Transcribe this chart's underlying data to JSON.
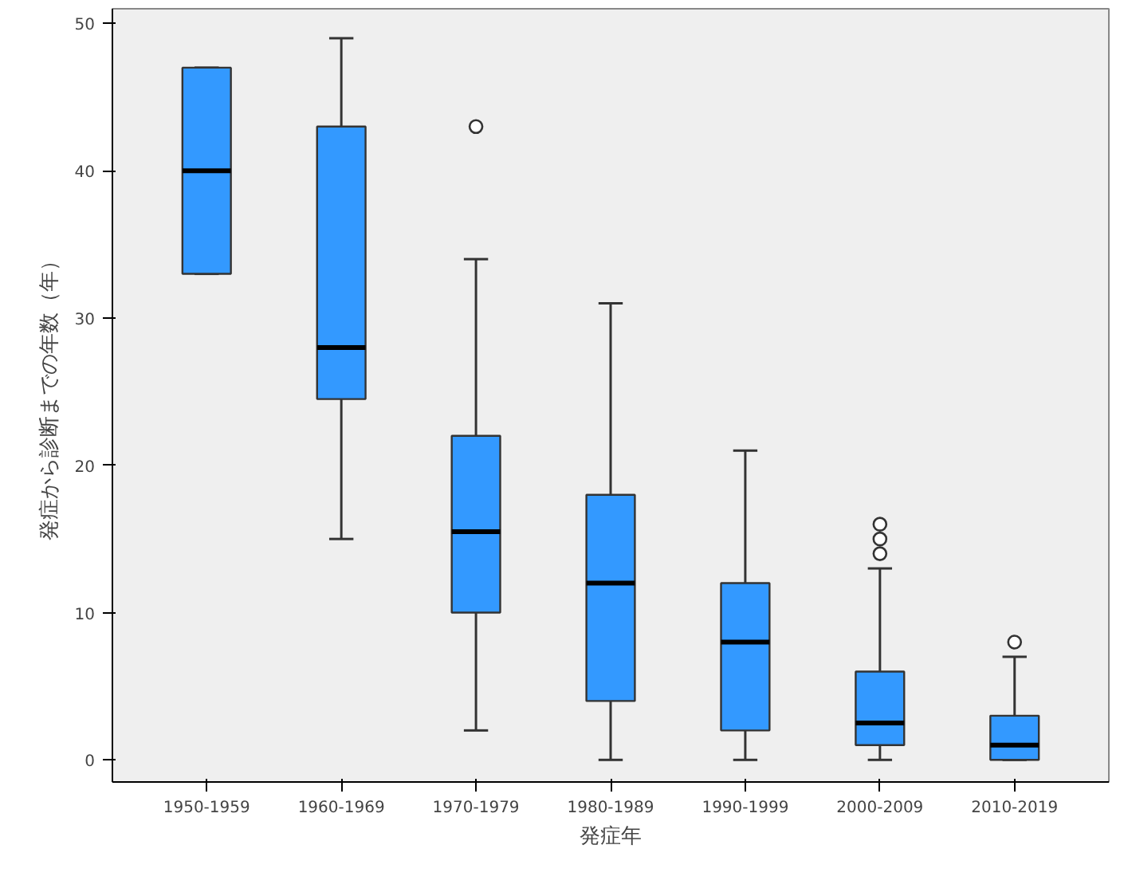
{
  "chart_data": {
    "type": "box",
    "xlabel": "発症年",
    "ylabel": "発症から診断までの年数（年）",
    "categories": [
      "1950-1959",
      "1960-1969",
      "1970-1979",
      "1980-1989",
      "1990-1999",
      "2000-2009",
      "2010-2019"
    ],
    "color": "#3399ff",
    "ylim": [
      -1.5,
      51
    ],
    "yticks": [
      0,
      10,
      20,
      30,
      40,
      50
    ],
    "grid": false,
    "boxes": [
      {
        "low": 33,
        "q1": 33,
        "median": 40,
        "q3": 47,
        "high": 47
      },
      {
        "low": 15,
        "q1": 24.5,
        "median": 28,
        "q3": 43,
        "high": 49
      },
      {
        "low": 2,
        "q1": 10,
        "median": 15.5,
        "q3": 22,
        "high": 34,
        "outliers": [
          43
        ]
      },
      {
        "low": 0,
        "q1": 4,
        "median": 12,
        "q3": 18,
        "high": 31
      },
      {
        "low": 0,
        "q1": 2,
        "median": 8,
        "q3": 12,
        "high": 21
      },
      {
        "low": 0,
        "q1": 1,
        "median": 2.5,
        "q3": 6,
        "high": 13,
        "outliers": [
          14,
          15,
          16
        ]
      },
      {
        "low": 0,
        "q1": 0,
        "median": 1,
        "q3": 3,
        "high": 7,
        "outliers": [
          8
        ]
      }
    ]
  }
}
